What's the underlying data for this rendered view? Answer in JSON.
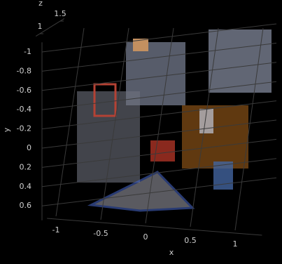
{
  "chart_data": {
    "type": "pointcloud",
    "x_label": "x",
    "y_label": "y",
    "z_label": "z",
    "xlim": [
      -1.1,
      1.3
    ],
    "ylim": [
      -1.1,
      0.75
    ],
    "zlim": [
      0.9,
      1.6
    ],
    "xticks": [
      -1,
      -0.5,
      0,
      0.5,
      1
    ],
    "yticks": [
      -1,
      -0.8,
      -0.6,
      -0.4,
      -0.2,
      0,
      0.2,
      0.4,
      0.6
    ],
    "zticks": [
      1,
      1.5
    ],
    "grid": true
  }
}
